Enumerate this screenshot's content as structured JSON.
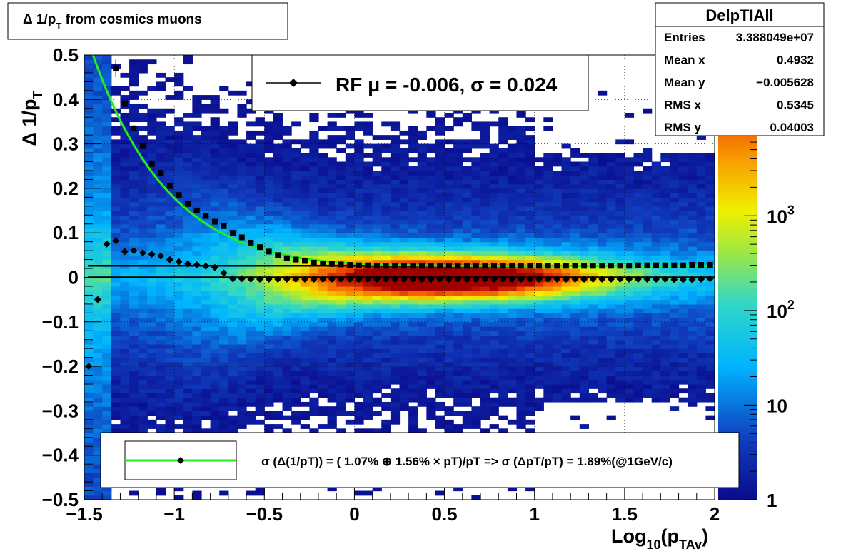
{
  "title_box": {
    "title": "Δ 1/p",
    "title_sub": "T",
    "title_rest": " from cosmics muons"
  },
  "stats_box": {
    "name": "DelpTIAll",
    "rows": [
      {
        "label": "Entries",
        "value": "3.388049e+07"
      },
      {
        "label": "Mean x",
        "value": "0.4932"
      },
      {
        "label": "Mean y",
        "value": "−0.005628"
      },
      {
        "label": "RMS x",
        "value": "0.5345"
      },
      {
        "label": "RMS y",
        "value": "0.04003"
      }
    ]
  },
  "legend_top": {
    "text": "RF μ = -0.006, σ =   0.024"
  },
  "legend_bottom": {
    "text": "σ (Δ(1/pT)) = ( 1.07% ⊕  1.56% × pT)/pT => σ (ΔpT/pT) =  1.89%(@1GeV/c)"
  },
  "chart_data": {
    "type": "heatmap",
    "xlabel_parts": [
      "Log",
      "10",
      "(p",
      "TAv",
      ")"
    ],
    "ylabel_parts": [
      "Δ 1/p",
      "T"
    ],
    "xlim": [
      -1.5,
      2.0
    ],
    "ylim": [
      -0.5,
      0.5
    ],
    "x_ticks": [
      {
        "v": -1.5,
        "label": "−1.5"
      },
      {
        "v": -1.0,
        "label": "−1"
      },
      {
        "v": -0.5,
        "label": "−0.5"
      },
      {
        "v": 0.0,
        "label": "0"
      },
      {
        "v": 0.5,
        "label": "0.5"
      },
      {
        "v": 1.0,
        "label": "1"
      },
      {
        "v": 1.5,
        "label": "1.5"
      },
      {
        "v": 2.0,
        "label": "2"
      }
    ],
    "y_ticks": [
      {
        "v": 0.5,
        "label": "0.5"
      },
      {
        "v": 0.4,
        "label": "0.4"
      },
      {
        "v": 0.3,
        "label": "0.3"
      },
      {
        "v": 0.2,
        "label": "0.2"
      },
      {
        "v": 0.1,
        "label": "0.1"
      },
      {
        "v": 0.0,
        "label": "0"
      },
      {
        "v": -0.1,
        "label": "−0.1"
      },
      {
        "v": -0.2,
        "label": "−0.2"
      },
      {
        "v": -0.3,
        "label": "−0.3"
      },
      {
        "v": -0.4,
        "label": "−0.4"
      },
      {
        "v": -0.5,
        "label": "−0.5"
      }
    ],
    "grid": true,
    "z_scale": "log",
    "zlim": [
      1,
      50000
    ],
    "z_ticks": [
      {
        "v": 1,
        "label": "1"
      },
      {
        "v": 10,
        "label": "10"
      },
      {
        "v": 100,
        "label": "10",
        "sup": "2"
      },
      {
        "v": 1000,
        "label": "10",
        "sup": "3"
      }
    ],
    "mean_points": {
      "x": [
        -1.475,
        -1.425,
        -1.375,
        -1.325,
        -1.275,
        -1.225,
        -1.175,
        -1.125,
        -1.075,
        -1.025,
        -0.975,
        -0.925,
        -0.875,
        -0.825,
        -0.775,
        -0.725,
        -0.675,
        -0.625,
        -0.575,
        -0.525,
        -0.475,
        -0.425,
        -0.375,
        -0.325,
        -0.275,
        -0.225,
        -0.175,
        -0.125,
        -0.075,
        -0.025,
        0.025,
        0.075,
        0.125,
        0.175,
        0.225,
        0.275,
        0.325,
        0.375,
        0.425,
        0.475,
        0.525,
        0.575,
        0.625,
        0.675,
        0.725,
        0.775,
        0.825,
        0.875,
        0.925,
        0.975,
        1.025,
        1.075,
        1.125,
        1.175,
        1.225,
        1.275,
        1.325,
        1.375,
        1.425,
        1.475,
        1.525,
        1.575,
        1.625,
        1.675,
        1.725,
        1.775,
        1.825,
        1.875,
        1.925,
        1.975
      ],
      "y": [
        -0.2,
        -0.05,
        0.075,
        0.082,
        0.058,
        0.06,
        0.055,
        0.052,
        0.048,
        0.04,
        0.035,
        0.03,
        0.028,
        0.025,
        0.022,
        0.01,
        -0.003,
        -0.003,
        -0.004,
        -0.004,
        -0.004,
        -0.004,
        -0.004,
        -0.004,
        -0.004,
        -0.004,
        -0.004,
        -0.004,
        -0.004,
        -0.004,
        -0.004,
        -0.004,
        -0.004,
        -0.004,
        -0.004,
        -0.004,
        -0.004,
        -0.004,
        -0.004,
        -0.004,
        -0.004,
        -0.004,
        -0.004,
        -0.004,
        -0.004,
        -0.004,
        -0.004,
        -0.004,
        -0.004,
        -0.004,
        -0.004,
        -0.004,
        -0.004,
        -0.004,
        -0.004,
        -0.004,
        -0.004,
        -0.004,
        -0.004,
        -0.004,
        -0.004,
        -0.004,
        -0.004,
        -0.004,
        -0.004,
        -0.005,
        -0.005,
        -0.005,
        -0.004,
        -0.003
      ]
    },
    "rms_points": {
      "x": [
        -1.325,
        -1.275,
        -1.225,
        -1.175,
        -1.125,
        -1.075,
        -1.025,
        -0.975,
        -0.925,
        -0.875,
        -0.825,
        -0.775,
        -0.725,
        -0.675,
        -0.625,
        -0.575,
        -0.525,
        -0.475,
        -0.425,
        -0.375,
        -0.325,
        -0.275,
        -0.225,
        -0.175,
        -0.125,
        -0.075,
        -0.025,
        0.025,
        0.075,
        0.125,
        0.175,
        0.225,
        0.275,
        0.325,
        0.375,
        0.425,
        0.475,
        0.525,
        0.575,
        0.625,
        0.675,
        0.725,
        0.775,
        0.825,
        0.875,
        0.925,
        0.975,
        1.025,
        1.075,
        1.125,
        1.175,
        1.225,
        1.275,
        1.325,
        1.375,
        1.425,
        1.475,
        1.525,
        1.575,
        1.625,
        1.675,
        1.725,
        1.775,
        1.825,
        1.875,
        1.925,
        1.975
      ],
      "y": [
        0.47,
        0.39,
        0.335,
        0.295,
        0.255,
        0.235,
        0.205,
        0.185,
        0.165,
        0.15,
        0.138,
        0.125,
        0.115,
        0.1,
        0.09,
        0.078,
        0.068,
        0.058,
        0.05,
        0.043,
        0.04,
        0.037,
        0.033,
        0.031,
        0.03,
        0.029,
        0.028,
        0.027,
        0.027,
        0.026,
        0.026,
        0.026,
        0.026,
        0.026,
        0.026,
        0.026,
        0.026,
        0.026,
        0.026,
        0.026,
        0.026,
        0.026,
        0.026,
        0.026,
        0.026,
        0.026,
        0.026,
        0.026,
        0.026,
        0.026,
        0.026,
        0.026,
        0.026,
        0.026,
        0.026,
        0.026,
        0.026,
        0.026,
        0.027,
        0.027,
        0.027,
        0.027,
        0.027,
        0.027,
        0.028,
        0.028,
        0.028
      ]
    },
    "fit_curve": {
      "color": "#22ee22",
      "a_percent": 1.07,
      "b_percent": 1.56
    },
    "reference_lines": [
      {
        "y": 0.0
      },
      {
        "y": 0.026
      }
    ]
  }
}
